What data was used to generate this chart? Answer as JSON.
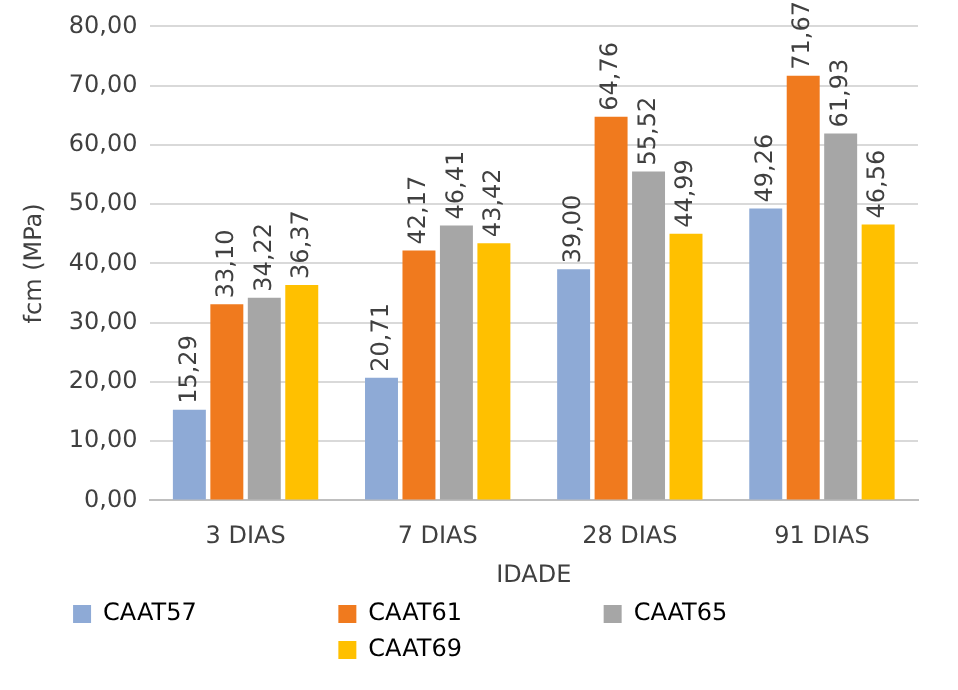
{
  "chart_data": {
    "type": "bar",
    "xlabel": "IDADE",
    "ylabel": "fcm (MPa)",
    "categories": [
      "3 DIAS",
      "7 DIAS",
      "28 DIAS",
      "91 DIAS"
    ],
    "series": [
      {
        "name": "CAAT57",
        "color": "#8eaad6",
        "values": [
          15.29,
          20.71,
          39.0,
          49.26
        ],
        "value_labels": [
          "15,29",
          "20,71",
          "39,00",
          "49,26"
        ]
      },
      {
        "name": "CAAT61",
        "color": "#f07a1e",
        "values": [
          33.1,
          42.17,
          64.76,
          71.67
        ],
        "value_labels": [
          "33,10",
          "42,17",
          "64,76",
          "71,67"
        ]
      },
      {
        "name": "CAAT65",
        "color": "#a6a6a6",
        "values": [
          34.22,
          46.41,
          55.52,
          61.93
        ],
        "value_labels": [
          "34,22",
          "46,41",
          "55,52",
          "61,93"
        ]
      },
      {
        "name": "CAAT69",
        "color": "#ffc000",
        "values": [
          36.37,
          43.42,
          44.99,
          46.56
        ],
        "value_labels": [
          "36,37",
          "43,42",
          "44,99",
          "46,56"
        ]
      }
    ],
    "ylim": [
      0,
      80
    ],
    "yticks": [
      {
        "value": 0,
        "label": "0,00"
      },
      {
        "value": 10,
        "label": "10,00"
      },
      {
        "value": 20,
        "label": "20,00"
      },
      {
        "value": 30,
        "label": "30,00"
      },
      {
        "value": 40,
        "label": "40,00"
      },
      {
        "value": 50,
        "label": "50,00"
      },
      {
        "value": 60,
        "label": "60,00"
      },
      {
        "value": 70,
        "label": "70,00"
      },
      {
        "value": 80,
        "label": "80,00"
      }
    ],
    "grid": "y",
    "legend": "bottom"
  }
}
